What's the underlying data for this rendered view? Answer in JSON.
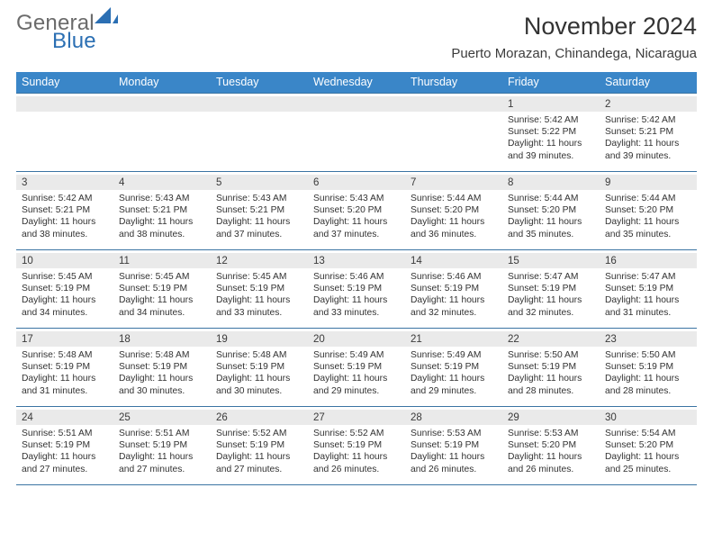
{
  "logo": {
    "part1": "General",
    "part2": "Blue",
    "colors": {
      "grey": "#6b6b6b",
      "blue": "#2b6fb3",
      "shape_blue": "#2b6fb3"
    }
  },
  "title": "November 2024",
  "subtitle": "Puerto Morazan, Chinandega, Nicaragua",
  "colors": {
    "header_bg": "#3a86c8",
    "header_text": "#ffffff",
    "week_divider": "#3a74a3",
    "daynum_bg": "#eaeaea",
    "text": "#2a2a2a",
    "background": "#ffffff"
  },
  "typography": {
    "title_fontsize": 27,
    "subtitle_fontsize": 15,
    "dayheader_fontsize": 12.5,
    "daynum_fontsize": 11.5,
    "facts_fontsize": 10.3,
    "font_family": "Arial"
  },
  "day_headers": [
    "Sunday",
    "Monday",
    "Tuesday",
    "Wednesday",
    "Thursday",
    "Friday",
    "Saturday"
  ],
  "weeks": [
    [
      null,
      null,
      null,
      null,
      null,
      {
        "n": 1,
        "sunrise": "5:42 AM",
        "sunset": "5:22 PM",
        "daylight": "11 hours and 39 minutes."
      },
      {
        "n": 2,
        "sunrise": "5:42 AM",
        "sunset": "5:21 PM",
        "daylight": "11 hours and 39 minutes."
      }
    ],
    [
      {
        "n": 3,
        "sunrise": "5:42 AM",
        "sunset": "5:21 PM",
        "daylight": "11 hours and 38 minutes."
      },
      {
        "n": 4,
        "sunrise": "5:43 AM",
        "sunset": "5:21 PM",
        "daylight": "11 hours and 38 minutes."
      },
      {
        "n": 5,
        "sunrise": "5:43 AM",
        "sunset": "5:21 PM",
        "daylight": "11 hours and 37 minutes."
      },
      {
        "n": 6,
        "sunrise": "5:43 AM",
        "sunset": "5:20 PM",
        "daylight": "11 hours and 37 minutes."
      },
      {
        "n": 7,
        "sunrise": "5:44 AM",
        "sunset": "5:20 PM",
        "daylight": "11 hours and 36 minutes."
      },
      {
        "n": 8,
        "sunrise": "5:44 AM",
        "sunset": "5:20 PM",
        "daylight": "11 hours and 35 minutes."
      },
      {
        "n": 9,
        "sunrise": "5:44 AM",
        "sunset": "5:20 PM",
        "daylight": "11 hours and 35 minutes."
      }
    ],
    [
      {
        "n": 10,
        "sunrise": "5:45 AM",
        "sunset": "5:19 PM",
        "daylight": "11 hours and 34 minutes."
      },
      {
        "n": 11,
        "sunrise": "5:45 AM",
        "sunset": "5:19 PM",
        "daylight": "11 hours and 34 minutes."
      },
      {
        "n": 12,
        "sunrise": "5:45 AM",
        "sunset": "5:19 PM",
        "daylight": "11 hours and 33 minutes."
      },
      {
        "n": 13,
        "sunrise": "5:46 AM",
        "sunset": "5:19 PM",
        "daylight": "11 hours and 33 minutes."
      },
      {
        "n": 14,
        "sunrise": "5:46 AM",
        "sunset": "5:19 PM",
        "daylight": "11 hours and 32 minutes."
      },
      {
        "n": 15,
        "sunrise": "5:47 AM",
        "sunset": "5:19 PM",
        "daylight": "11 hours and 32 minutes."
      },
      {
        "n": 16,
        "sunrise": "5:47 AM",
        "sunset": "5:19 PM",
        "daylight": "11 hours and 31 minutes."
      }
    ],
    [
      {
        "n": 17,
        "sunrise": "5:48 AM",
        "sunset": "5:19 PM",
        "daylight": "11 hours and 31 minutes."
      },
      {
        "n": 18,
        "sunrise": "5:48 AM",
        "sunset": "5:19 PM",
        "daylight": "11 hours and 30 minutes."
      },
      {
        "n": 19,
        "sunrise": "5:48 AM",
        "sunset": "5:19 PM",
        "daylight": "11 hours and 30 minutes."
      },
      {
        "n": 20,
        "sunrise": "5:49 AM",
        "sunset": "5:19 PM",
        "daylight": "11 hours and 29 minutes."
      },
      {
        "n": 21,
        "sunrise": "5:49 AM",
        "sunset": "5:19 PM",
        "daylight": "11 hours and 29 minutes."
      },
      {
        "n": 22,
        "sunrise": "5:50 AM",
        "sunset": "5:19 PM",
        "daylight": "11 hours and 28 minutes."
      },
      {
        "n": 23,
        "sunrise": "5:50 AM",
        "sunset": "5:19 PM",
        "daylight": "11 hours and 28 minutes."
      }
    ],
    [
      {
        "n": 24,
        "sunrise": "5:51 AM",
        "sunset": "5:19 PM",
        "daylight": "11 hours and 27 minutes."
      },
      {
        "n": 25,
        "sunrise": "5:51 AM",
        "sunset": "5:19 PM",
        "daylight": "11 hours and 27 minutes."
      },
      {
        "n": 26,
        "sunrise": "5:52 AM",
        "sunset": "5:19 PM",
        "daylight": "11 hours and 27 minutes."
      },
      {
        "n": 27,
        "sunrise": "5:52 AM",
        "sunset": "5:19 PM",
        "daylight": "11 hours and 26 minutes."
      },
      {
        "n": 28,
        "sunrise": "5:53 AM",
        "sunset": "5:19 PM",
        "daylight": "11 hours and 26 minutes."
      },
      {
        "n": 29,
        "sunrise": "5:53 AM",
        "sunset": "5:20 PM",
        "daylight": "11 hours and 26 minutes."
      },
      {
        "n": 30,
        "sunrise": "5:54 AM",
        "sunset": "5:20 PM",
        "daylight": "11 hours and 25 minutes."
      }
    ]
  ],
  "labels": {
    "sunrise_prefix": "Sunrise: ",
    "sunset_prefix": "Sunset: ",
    "daylight_prefix": "Daylight: "
  }
}
